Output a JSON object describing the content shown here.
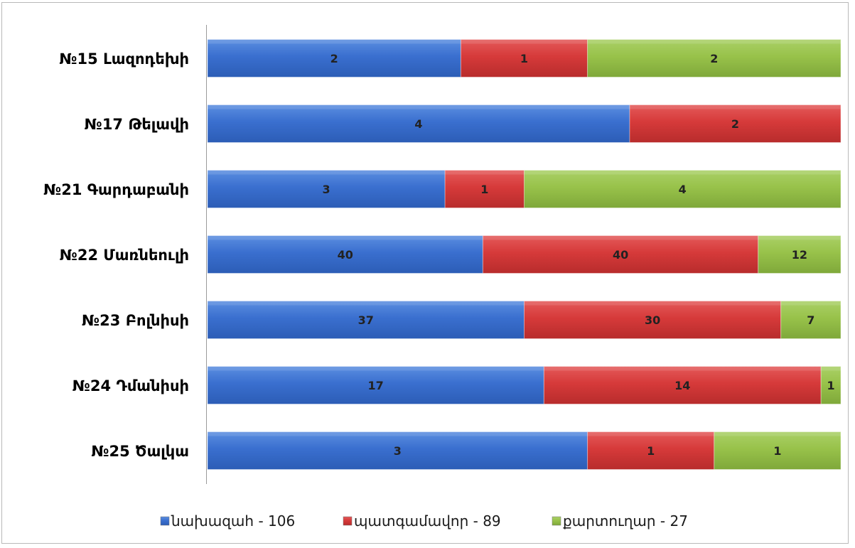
{
  "chart_data": {
    "type": "bar",
    "orientation": "horizontal",
    "stacked": "percent",
    "categories": [
      "№15 Լազոդեխի",
      "№17 Թելավի",
      "№21 Գարդաբանի",
      "№22 Մառնեուլի",
      "№23 Բոլնիսի",
      "№24 Դմանիսի",
      "№25 Ծալկա"
    ],
    "series": [
      {
        "name": "նախազահ - 106",
        "color": "#3a6fcf",
        "values": [
          2,
          4,
          3,
          40,
          37,
          17,
          3
        ]
      },
      {
        "name": "պատգամավոր - 89",
        "color": "#d63a3a",
        "values": [
          1,
          2,
          1,
          40,
          30,
          14,
          1
        ]
      },
      {
        "name": "քարտուղար - 27",
        "color": "#98c24a",
        "values": [
          2,
          0,
          4,
          12,
          7,
          1,
          1
        ]
      }
    ],
    "legend": "bottom",
    "grid": false,
    "data_labels": true
  }
}
